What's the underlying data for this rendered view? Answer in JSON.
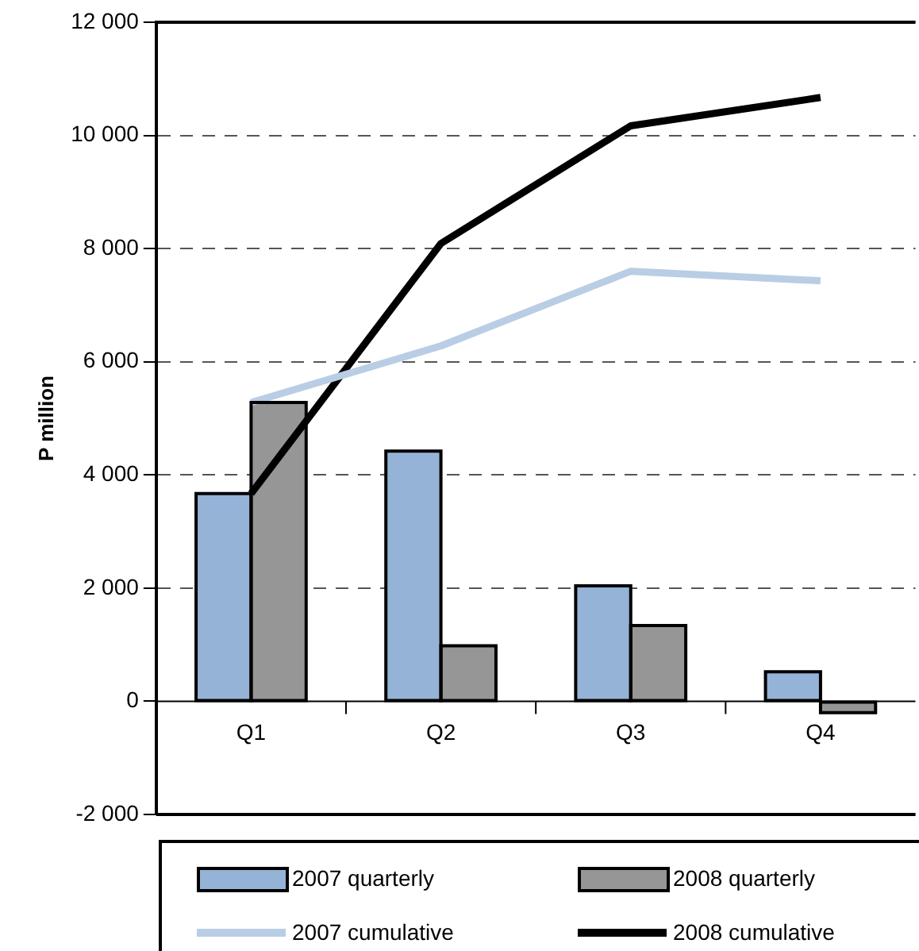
{
  "chart_data": {
    "type": "bar",
    "ylabel": "P million",
    "categories": [
      "Q1",
      "Q2",
      "Q3",
      "Q4"
    ],
    "series": [
      {
        "name": "2007 quarterly",
        "color": "#95b3d7",
        "values": [
          3670,
          4420,
          2040,
          520
        ]
      },
      {
        "name": "2008 quarterly",
        "color": "#969696",
        "values": [
          5280,
          980,
          1340,
          -200
        ]
      },
      {
        "name": "2007 cumulative",
        "type": "line",
        "color": "#b9cde5",
        "values": [
          5280,
          6280,
          7600,
          7430
        ]
      },
      {
        "name": "2008 cumulative",
        "type": "line",
        "color": "#000000",
        "values": [
          3670,
          8090,
          10170,
          10670
        ]
      }
    ],
    "ylim": [
      -2000,
      12000
    ],
    "yticks": [
      {
        "value": -2000,
        "label": "-2 000"
      },
      {
        "value": 0,
        "label": "0"
      },
      {
        "value": 2000,
        "label": "2 000"
      },
      {
        "value": 4000,
        "label": "4 000"
      },
      {
        "value": 6000,
        "label": "6 000"
      },
      {
        "value": 8000,
        "label": "8 000"
      },
      {
        "value": 10000,
        "label": "10 000"
      },
      {
        "value": 12000,
        "label": "12 000"
      }
    ],
    "grid": "y",
    "legend": "bottom",
    "marker": "none",
    "line_style": "solid"
  }
}
